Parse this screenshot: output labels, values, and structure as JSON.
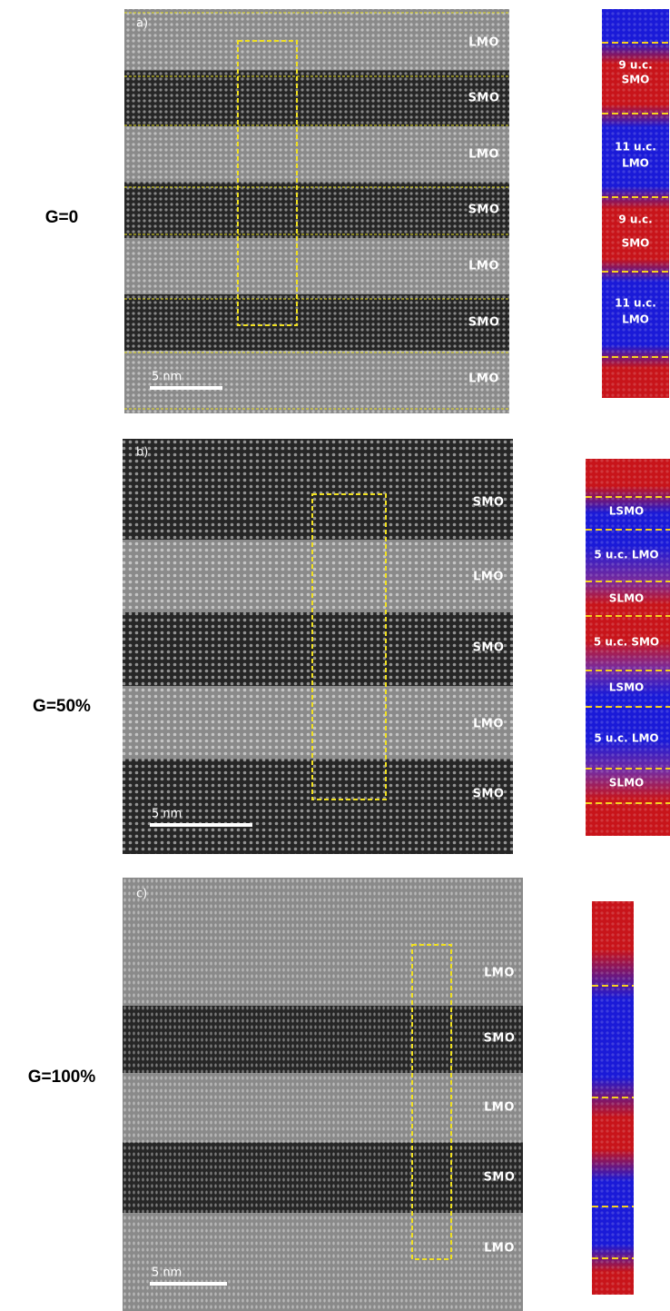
{
  "panels": [
    {
      "label": "a)",
      "condition": "G=0",
      "scale_bar": "5 nm",
      "layers": [
        "LMO",
        "SMO",
        "LMO",
        "SMO",
        "LMO",
        "SMO",
        "LMO"
      ],
      "profile_labels": [
        [
          "9 u.c.",
          "SMO"
        ],
        [
          "11 u.c.",
          "LMO"
        ],
        [
          "9 u.c.",
          "SMO"
        ],
        [
          "11 u.c.",
          "LMO"
        ]
      ]
    },
    {
      "label": "b)",
      "condition": "G=50%",
      "scale_bar": "5 nm",
      "layers": [
        "SMO",
        "LMO",
        "SMO",
        "LMO",
        "SMO"
      ],
      "profile_labels": [
        [
          "LSMO"
        ],
        [
          "5 u.c. LMO"
        ],
        [
          "SLMO"
        ],
        [
          "5 u.c. SMO"
        ],
        [
          "LSMO"
        ],
        [
          "5 u.c. LMO"
        ],
        [
          "SLMO"
        ]
      ]
    },
    {
      "label": "c)",
      "condition": "G=100%",
      "scale_bar": "5 nm",
      "layers": [
        "LMO",
        "SMO",
        "LMO",
        "SMO",
        "LMO"
      ],
      "profile_labels": []
    }
  ]
}
